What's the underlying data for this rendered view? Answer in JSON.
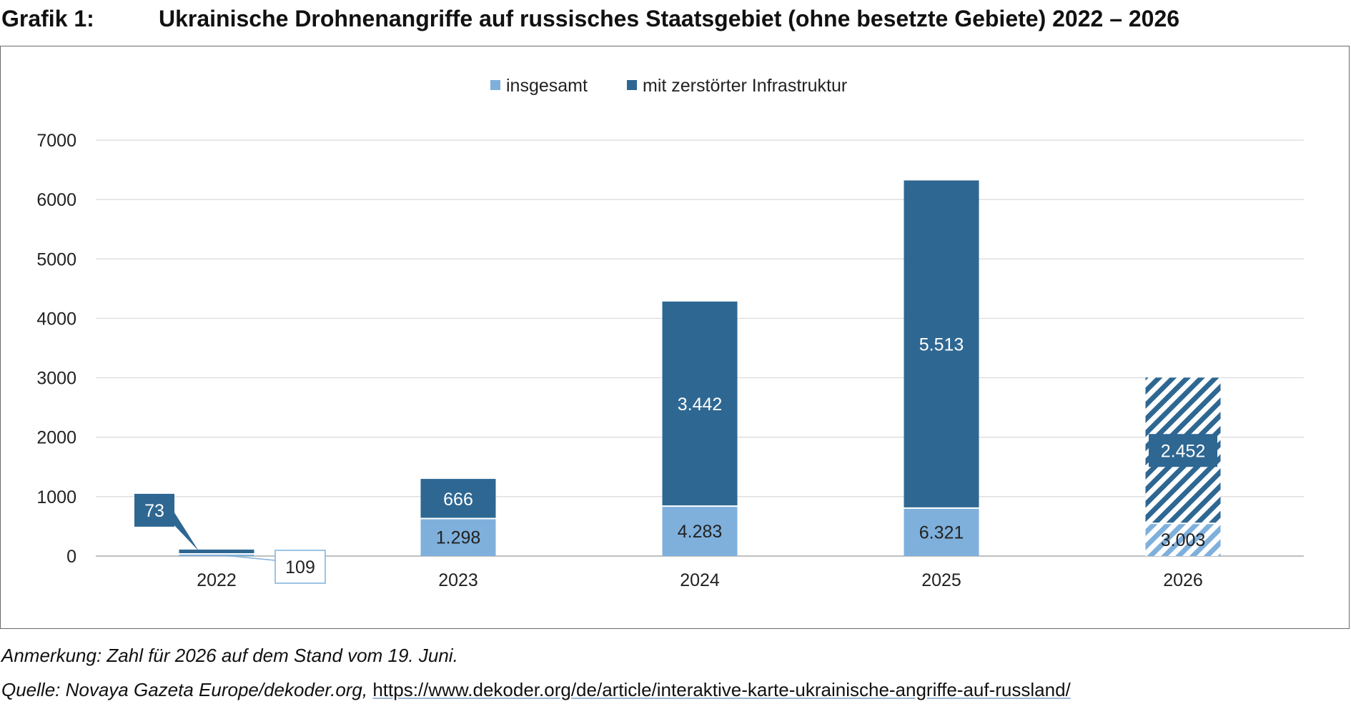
{
  "header": {
    "label": "Grafik 1:",
    "title": "Ukrainische Drohnenangriffe auf russisches Staatsgebiet (ohne besetzte Gebiete) 2022 – 2026"
  },
  "footer": {
    "note": "Anmerkung: Zahl für 2026 auf dem Stand vom 19. Juni.",
    "source_prefix": "Quelle: Novaya Gazeta Europe/dekoder.org, ",
    "source_url": "https://www.dekoder.org/de/article/interaktive-karte-ukrainische-angriffe-auf-russland/"
  },
  "chart_data": {
    "type": "bar",
    "stacked": true,
    "title": "",
    "xlabel": "",
    "ylabel": "",
    "ylim": [
      0,
      7000
    ],
    "yticks": [
      "7000",
      "6000",
      "5000",
      "4000",
      "3000",
      "2000",
      "1000",
      "0"
    ],
    "grid": true,
    "legend_position": "top-center",
    "categories": [
      "2022",
      "2023",
      "2024",
      "2025",
      "2026"
    ],
    "series": [
      {
        "name": "insgesamt",
        "color": "#7fb0dc",
        "values": [
          36,
          632,
          841,
          808,
          551
        ],
        "labels": [
          "109",
          "1.298",
          "4.283",
          "6.321",
          "3.003"
        ]
      },
      {
        "name": "mit zerstörter Infrastruktur",
        "color": "#2e6792",
        "values": [
          73,
          666,
          3442,
          5513,
          2452
        ],
        "labels": [
          "73",
          "666",
          "3.442",
          "5.513",
          "2.452"
        ]
      }
    ],
    "hatched_categories": [
      "2026"
    ]
  }
}
